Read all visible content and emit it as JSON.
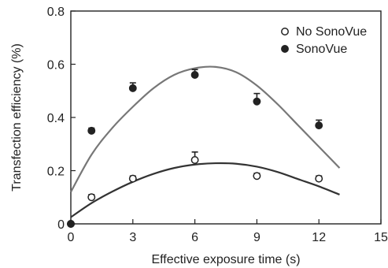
{
  "chart_data": {
    "type": "scatter",
    "title": "",
    "xlabel": "Effective exposure time (s)",
    "ylabel": "Transfection efficiency (%)",
    "xlim": [
      0,
      15
    ],
    "ylim": [
      0,
      0.8
    ],
    "xticks": [
      0,
      3,
      6,
      9,
      12,
      15
    ],
    "yticks": [
      0,
      0.2,
      0.4,
      0.6,
      0.8
    ],
    "grid": false,
    "legend_position": "top-right",
    "series": [
      {
        "name": "No SonoVue",
        "marker": "open-circle",
        "color": "#222222",
        "x": [
          0,
          1,
          3,
          6,
          9,
          12
        ],
        "y": [
          0,
          0.1,
          0.17,
          0.24,
          0.18,
          0.17
        ],
        "error": [
          0,
          0.01,
          0.01,
          0.03,
          0.01,
          0.01
        ],
        "fit_color": "#333333",
        "fit_curve": {
          "x": [
            0,
            1,
            2,
            3,
            4,
            5,
            6,
            7,
            8,
            9,
            10,
            11,
            12,
            13
          ],
          "y": [
            0.025,
            0.078,
            0.121,
            0.158,
            0.188,
            0.21,
            0.223,
            0.228,
            0.226,
            0.215,
            0.195,
            0.168,
            0.141,
            0.11
          ]
        }
      },
      {
        "name": "SonoVue",
        "marker": "filled-circle",
        "color": "#222222",
        "x": [
          0,
          1,
          3,
          6,
          9,
          12
        ],
        "y": [
          0,
          0.35,
          0.51,
          0.56,
          0.46,
          0.37
        ],
        "error": [
          0,
          0.01,
          0.02,
          0.02,
          0.03,
          0.02
        ],
        "fit_color": "#777777",
        "fit_curve": {
          "x": [
            0,
            1,
            2,
            3,
            4,
            5,
            6,
            7,
            8,
            9,
            10,
            11,
            12,
            13
          ],
          "y": [
            0.12,
            0.26,
            0.36,
            0.44,
            0.51,
            0.56,
            0.585,
            0.59,
            0.57,
            0.52,
            0.45,
            0.37,
            0.29,
            0.21
          ]
        }
      }
    ]
  }
}
